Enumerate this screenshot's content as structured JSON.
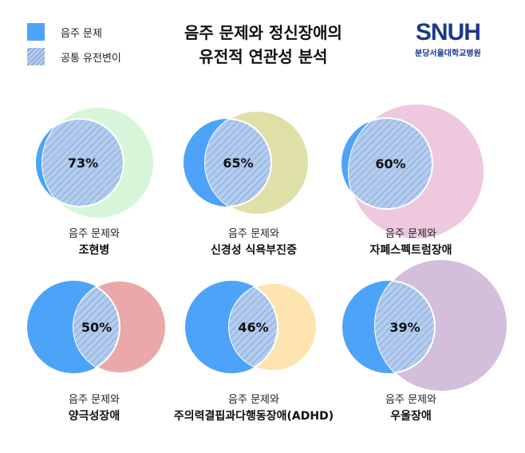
{
  "legend": [
    {
      "label": "음주 문제",
      "style": "solid",
      "color": "#4da3f7"
    },
    {
      "label": "공통 유전변이",
      "style": "hatched",
      "color": "#b3cdf0"
    }
  ],
  "title": {
    "line1": "음주 문제와 정신장애의",
    "line2": "유전적 연관성 분석"
  },
  "logo": {
    "text": "SNUH",
    "subtitle": "분당서울대학교병원"
  },
  "colors": {
    "alcohol": "#4da3f7",
    "hatch_fill": "#b3cdf0",
    "hatch_line": "#7d98c4"
  },
  "panels": [
    {
      "percent": "73%",
      "prefix": "음주 문제와",
      "disorder": "조현병",
      "color": "#d6f5d9"
    },
    {
      "percent": "65%",
      "prefix": "음주 문제와",
      "disorder": "신경성 식욕부진증",
      "color": "#dfe0a8"
    },
    {
      "percent": "60%",
      "prefix": "음주 문제와",
      "disorder": "자폐스펙트럼장애",
      "color": "#eec8de"
    },
    {
      "percent": "50%",
      "prefix": "음주 문제와",
      "disorder": "양극성장애",
      "color": "#eaa8a8"
    },
    {
      "percent": "46%",
      "prefix": "음주 문제와",
      "disorder": "주의력결핍과다행동장애(ADHD)",
      "color": "#fde4b0"
    },
    {
      "percent": "39%",
      "prefix": "음주 문제와",
      "disorder": "우울장애",
      "color": "#d3bedc"
    }
  ]
}
